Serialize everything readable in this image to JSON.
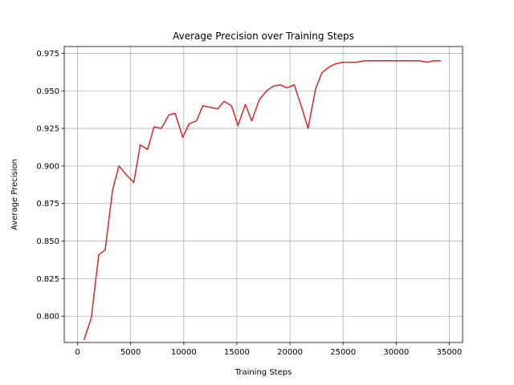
{
  "chart_data": {
    "type": "line",
    "title": "Average Precision over Training Steps",
    "xlabel": "Training Steps",
    "ylabel": "Average Precision",
    "xlim": [
      -1250,
      36250
    ],
    "ylim": [
      0.7825,
      0.9795
    ],
    "xticks": [
      0,
      5000,
      10000,
      15000,
      20000,
      25000,
      30000,
      35000
    ],
    "xtick_labels": [
      "0",
      "5000",
      "10000",
      "15000",
      "20000",
      "25000",
      "30000",
      "35000"
    ],
    "yticks": [
      0.8,
      0.825,
      0.85,
      0.875,
      0.9,
      0.925,
      0.95,
      0.975
    ],
    "ytick_labels": [
      "0.800",
      "0.825",
      "0.850",
      "0.875",
      "0.900",
      "0.925",
      "0.950",
      "0.975"
    ],
    "grid": true,
    "series": [
      {
        "color": "#d62728",
        "x": [
          600,
          1300,
          2000,
          2600,
          3300,
          3900,
          4600,
          5300,
          5900,
          6600,
          7200,
          7900,
          8600,
          9200,
          9900,
          10500,
          11200,
          11800,
          12500,
          13200,
          13800,
          14500,
          15100,
          15800,
          16400,
          17100,
          17800,
          18400,
          19100,
          19700,
          20400,
          21100,
          21700,
          22400,
          23000,
          23700,
          24300,
          25000,
          25700,
          26300,
          27000,
          27600,
          28300,
          29000,
          29600,
          30300,
          30900,
          31600,
          32200,
          32900,
          33500,
          34200
        ],
        "y": [
          0.784,
          0.799,
          0.841,
          0.844,
          0.884,
          0.9,
          0.894,
          0.889,
          0.914,
          0.911,
          0.926,
          0.925,
          0.934,
          0.935,
          0.919,
          0.928,
          0.93,
          0.94,
          0.939,
          0.938,
          0.943,
          0.94,
          0.927,
          0.941,
          0.93,
          0.944,
          0.95,
          0.953,
          0.954,
          0.952,
          0.954,
          0.939,
          0.925,
          0.951,
          0.962,
          0.966,
          0.968,
          0.969,
          0.969,
          0.969,
          0.97,
          0.97,
          0.97,
          0.97,
          0.97,
          0.97,
          0.97,
          0.97,
          0.97,
          0.969,
          0.97,
          0.97
        ]
      }
    ]
  }
}
